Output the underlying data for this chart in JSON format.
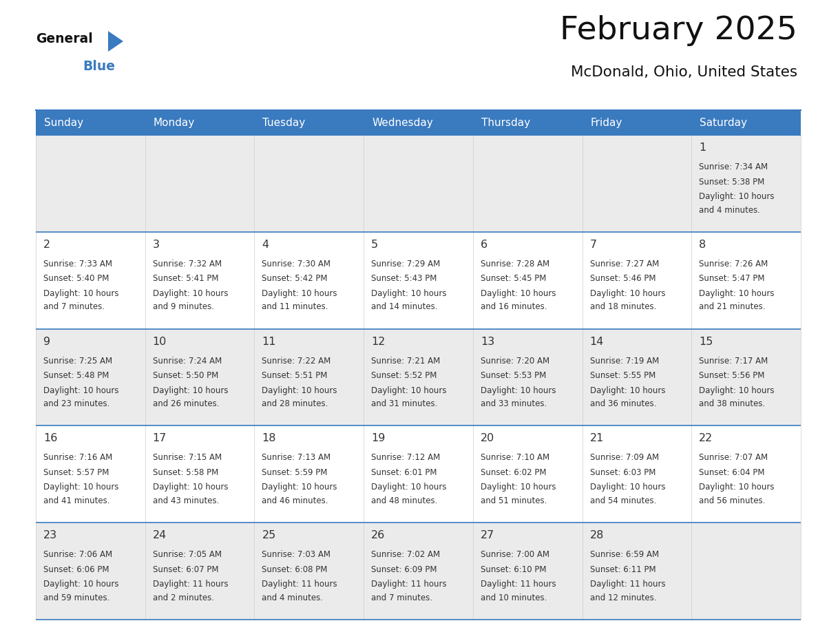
{
  "title": "February 2025",
  "subtitle": "McDonald, Ohio, United States",
  "header_bg": "#3a7abf",
  "header_text_color": "#ffffff",
  "border_color": "#3a7abf",
  "day_headers": [
    "Sunday",
    "Monday",
    "Tuesday",
    "Wednesday",
    "Thursday",
    "Friday",
    "Saturday"
  ],
  "days": [
    {
      "day": 1,
      "col": 6,
      "row": 0,
      "sunrise": "7:34 AM",
      "sunset": "5:38 PM",
      "daylight_line1": "Daylight: 10 hours",
      "daylight_line2": "and 4 minutes."
    },
    {
      "day": 2,
      "col": 0,
      "row": 1,
      "sunrise": "7:33 AM",
      "sunset": "5:40 PM",
      "daylight_line1": "Daylight: 10 hours",
      "daylight_line2": "and 7 minutes."
    },
    {
      "day": 3,
      "col": 1,
      "row": 1,
      "sunrise": "7:32 AM",
      "sunset": "5:41 PM",
      "daylight_line1": "Daylight: 10 hours",
      "daylight_line2": "and 9 minutes."
    },
    {
      "day": 4,
      "col": 2,
      "row": 1,
      "sunrise": "7:30 AM",
      "sunset": "5:42 PM",
      "daylight_line1": "Daylight: 10 hours",
      "daylight_line2": "and 11 minutes."
    },
    {
      "day": 5,
      "col": 3,
      "row": 1,
      "sunrise": "7:29 AM",
      "sunset": "5:43 PM",
      "daylight_line1": "Daylight: 10 hours",
      "daylight_line2": "and 14 minutes."
    },
    {
      "day": 6,
      "col": 4,
      "row": 1,
      "sunrise": "7:28 AM",
      "sunset": "5:45 PM",
      "daylight_line1": "Daylight: 10 hours",
      "daylight_line2": "and 16 minutes."
    },
    {
      "day": 7,
      "col": 5,
      "row": 1,
      "sunrise": "7:27 AM",
      "sunset": "5:46 PM",
      "daylight_line1": "Daylight: 10 hours",
      "daylight_line2": "and 18 minutes."
    },
    {
      "day": 8,
      "col": 6,
      "row": 1,
      "sunrise": "7:26 AM",
      "sunset": "5:47 PM",
      "daylight_line1": "Daylight: 10 hours",
      "daylight_line2": "and 21 minutes."
    },
    {
      "day": 9,
      "col": 0,
      "row": 2,
      "sunrise": "7:25 AM",
      "sunset": "5:48 PM",
      "daylight_line1": "Daylight: 10 hours",
      "daylight_line2": "and 23 minutes."
    },
    {
      "day": 10,
      "col": 1,
      "row": 2,
      "sunrise": "7:24 AM",
      "sunset": "5:50 PM",
      "daylight_line1": "Daylight: 10 hours",
      "daylight_line2": "and 26 minutes."
    },
    {
      "day": 11,
      "col": 2,
      "row": 2,
      "sunrise": "7:22 AM",
      "sunset": "5:51 PM",
      "daylight_line1": "Daylight: 10 hours",
      "daylight_line2": "and 28 minutes."
    },
    {
      "day": 12,
      "col": 3,
      "row": 2,
      "sunrise": "7:21 AM",
      "sunset": "5:52 PM",
      "daylight_line1": "Daylight: 10 hours",
      "daylight_line2": "and 31 minutes."
    },
    {
      "day": 13,
      "col": 4,
      "row": 2,
      "sunrise": "7:20 AM",
      "sunset": "5:53 PM",
      "daylight_line1": "Daylight: 10 hours",
      "daylight_line2": "and 33 minutes."
    },
    {
      "day": 14,
      "col": 5,
      "row": 2,
      "sunrise": "7:19 AM",
      "sunset": "5:55 PM",
      "daylight_line1": "Daylight: 10 hours",
      "daylight_line2": "and 36 minutes."
    },
    {
      "day": 15,
      "col": 6,
      "row": 2,
      "sunrise": "7:17 AM",
      "sunset": "5:56 PM",
      "daylight_line1": "Daylight: 10 hours",
      "daylight_line2": "and 38 minutes."
    },
    {
      "day": 16,
      "col": 0,
      "row": 3,
      "sunrise": "7:16 AM",
      "sunset": "5:57 PM",
      "daylight_line1": "Daylight: 10 hours",
      "daylight_line2": "and 41 minutes."
    },
    {
      "day": 17,
      "col": 1,
      "row": 3,
      "sunrise": "7:15 AM",
      "sunset": "5:58 PM",
      "daylight_line1": "Daylight: 10 hours",
      "daylight_line2": "and 43 minutes."
    },
    {
      "day": 18,
      "col": 2,
      "row": 3,
      "sunrise": "7:13 AM",
      "sunset": "5:59 PM",
      "daylight_line1": "Daylight: 10 hours",
      "daylight_line2": "and 46 minutes."
    },
    {
      "day": 19,
      "col": 3,
      "row": 3,
      "sunrise": "7:12 AM",
      "sunset": "6:01 PM",
      "daylight_line1": "Daylight: 10 hours",
      "daylight_line2": "and 48 minutes."
    },
    {
      "day": 20,
      "col": 4,
      "row": 3,
      "sunrise": "7:10 AM",
      "sunset": "6:02 PM",
      "daylight_line1": "Daylight: 10 hours",
      "daylight_line2": "and 51 minutes."
    },
    {
      "day": 21,
      "col": 5,
      "row": 3,
      "sunrise": "7:09 AM",
      "sunset": "6:03 PM",
      "daylight_line1": "Daylight: 10 hours",
      "daylight_line2": "and 54 minutes."
    },
    {
      "day": 22,
      "col": 6,
      "row": 3,
      "sunrise": "7:07 AM",
      "sunset": "6:04 PM",
      "daylight_line1": "Daylight: 10 hours",
      "daylight_line2": "and 56 minutes."
    },
    {
      "day": 23,
      "col": 0,
      "row": 4,
      "sunrise": "7:06 AM",
      "sunset": "6:06 PM",
      "daylight_line1": "Daylight: 10 hours",
      "daylight_line2": "and 59 minutes."
    },
    {
      "day": 24,
      "col": 1,
      "row": 4,
      "sunrise": "7:05 AM",
      "sunset": "6:07 PM",
      "daylight_line1": "Daylight: 11 hours",
      "daylight_line2": "and 2 minutes."
    },
    {
      "day": 25,
      "col": 2,
      "row": 4,
      "sunrise": "7:03 AM",
      "sunset": "6:08 PM",
      "daylight_line1": "Daylight: 11 hours",
      "daylight_line2": "and 4 minutes."
    },
    {
      "day": 26,
      "col": 3,
      "row": 4,
      "sunrise": "7:02 AM",
      "sunset": "6:09 PM",
      "daylight_line1": "Daylight: 11 hours",
      "daylight_line2": "and 7 minutes."
    },
    {
      "day": 27,
      "col": 4,
      "row": 4,
      "sunrise": "7:00 AM",
      "sunset": "6:10 PM",
      "daylight_line1": "Daylight: 11 hours",
      "daylight_line2": "and 10 minutes."
    },
    {
      "day": 28,
      "col": 5,
      "row": 4,
      "sunrise": "6:59 AM",
      "sunset": "6:11 PM",
      "daylight_line1": "Daylight: 11 hours",
      "daylight_line2": "and 12 minutes."
    }
  ],
  "num_rows": 5,
  "num_cols": 7,
  "logo_text1": "General",
  "logo_triangle_color": "#3a7abf",
  "logo_text2": "Blue",
  "cell_text_color": "#333333",
  "day_num_color": "#333333",
  "row0_bg": "#ebebeb",
  "row1_bg": "#ffffff",
  "row2_bg": "#ebebeb",
  "row3_bg": "#ffffff",
  "row4_bg": "#ebebeb"
}
